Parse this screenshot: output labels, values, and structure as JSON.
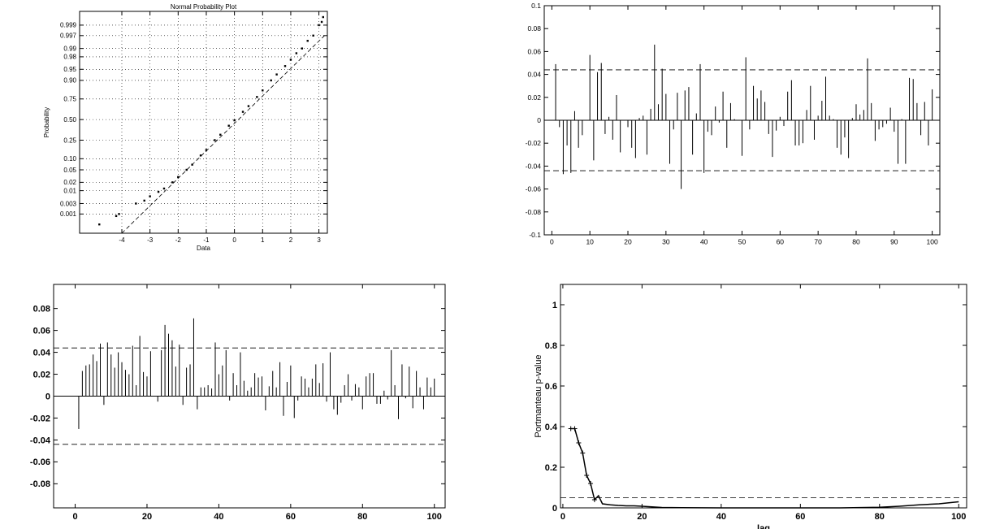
{
  "chart_data": [
    {
      "type": "scatter",
      "title": "Normal Probability Plot",
      "x_label": "Data",
      "y_label": "Probability",
      "yscale": "normal-probability",
      "grid": true,
      "color": "#000000",
      "xlim": [
        -5.5,
        3.3
      ],
      "xticks": [
        -4,
        -3,
        -2,
        -1,
        0,
        1,
        2,
        3
      ],
      "ylim": [
        0.0001,
        0.9998
      ],
      "yticks": [
        0.001,
        0.003,
        0.01,
        0.02,
        0.05,
        {
          "value": 0.1,
          "label": "0.10"
        },
        0.25,
        {
          "value": 0.5,
          "label": "0.50"
        },
        0.75,
        {
          "value": 0.9,
          "label": "0.90"
        },
        0.95,
        0.98,
        0.99,
        0.997,
        0.999
      ],
      "x": [
        -4.8,
        -4.2,
        -4.1,
        -3.5,
        -3.2,
        -3,
        -2.7,
        -2.5,
        -2.2,
        -2,
        -1.7,
        -1.5,
        -1.2,
        -1,
        -0.7,
        -0.5,
        -0.2,
        0,
        0.3,
        0.5,
        0.8,
        1,
        1.3,
        1.5,
        1.8,
        2,
        2.2,
        2.4,
        2.6,
        2.8,
        3,
        3.1,
        3.15
      ],
      "values": [
        0.0003,
        0.0008,
        0.001,
        0.003,
        0.004,
        0.006,
        0.009,
        0.012,
        0.02,
        0.03,
        0.05,
        0.07,
        0.12,
        0.16,
        0.25,
        0.31,
        0.42,
        0.49,
        0.6,
        0.67,
        0.77,
        0.83,
        0.9,
        0.93,
        0.96,
        0.975,
        0.985,
        0.99,
        0.995,
        0.997,
        0.999,
        0.9993,
        0.9996
      ],
      "reference_line": {
        "x": [
          -4,
          3.2
        ],
        "values": [
          0.0001,
          0.997
        ]
      }
    },
    {
      "type": "stem",
      "color": "#000000",
      "xlim": [
        -2,
        102
      ],
      "xticks": [
        0,
        10,
        20,
        30,
        40,
        50,
        60,
        70,
        80,
        90,
        100
      ],
      "ylim": [
        -0.1,
        0.1
      ],
      "yticks": [
        -0.1,
        -0.08,
        -0.06,
        -0.04,
        -0.02,
        0,
        0.02,
        0.04,
        0.06,
        0.08,
        0.1
      ],
      "hlines": [
        -0.044,
        0.044
      ],
      "x": [
        1,
        2,
        3,
        4,
        5,
        6,
        7,
        8,
        9,
        10,
        11,
        12,
        13,
        14,
        15,
        16,
        17,
        18,
        19,
        20,
        21,
        22,
        23,
        24,
        25,
        26,
        27,
        28,
        29,
        30,
        31,
        32,
        33,
        34,
        35,
        36,
        37,
        38,
        39,
        40,
        41,
        42,
        43,
        44,
        45,
        46,
        47,
        48,
        49,
        50,
        51,
        52,
        53,
        54,
        55,
        56,
        57,
        58,
        59,
        60,
        61,
        62,
        63,
        64,
        65,
        66,
        67,
        68,
        69,
        70,
        71,
        72,
        73,
        74,
        75,
        76,
        77,
        78,
        79,
        80,
        81,
        82,
        83,
        84,
        85,
        86,
        87,
        88,
        89,
        90,
        91,
        92,
        93,
        94,
        95,
        96,
        97,
        98,
        99,
        100
      ],
      "values": [
        0.049,
        -0.006,
        -0.047,
        -0.022,
        -0.046,
        0.008,
        -0.024,
        -0.013,
        0.0,
        0.057,
        -0.035,
        0.042,
        0.05,
        -0.012,
        0.003,
        -0.017,
        0.022,
        -0.028,
        0.0,
        -0.006,
        -0.024,
        -0.033,
        0.002,
        0.004,
        -0.03,
        0.01,
        0.066,
        0.014,
        0.045,
        0.023,
        -0.038,
        -0.008,
        0.024,
        -0.06,
        0.026,
        0.029,
        -0.03,
        0.006,
        0.049,
        -0.046,
        -0.01,
        -0.013,
        0.012,
        -0.002,
        0.025,
        -0.024,
        0.015,
        0.001,
        0.0,
        -0.031,
        0.055,
        -0.008,
        0.03,
        0.019,
        0.026,
        0.016,
        -0.012,
        -0.032,
        -0.009,
        0.003,
        -0.005,
        0.025,
        0.035,
        -0.022,
        -0.022,
        -0.02,
        0.009,
        0.03,
        -0.017,
        0.004,
        0.017,
        0.038,
        0.004,
        0.001,
        -0.024,
        -0.03,
        -0.015,
        -0.033,
        0.002,
        0.014,
        0.005,
        0.009,
        0.054,
        0.015,
        -0.018,
        -0.008,
        -0.006,
        -0.003,
        0.011,
        -0.01,
        -0.038,
        0.001,
        -0.038,
        0.037,
        0.036,
        0.015,
        -0.013,
        0.016,
        -0.022,
        0.027
      ]
    },
    {
      "type": "stem",
      "color": "#000000",
      "xlim": [
        -6,
        103
      ],
      "xticks": [
        0,
        20,
        40,
        60,
        80,
        100
      ],
      "ylim": [
        -0.102,
        0.102
      ],
      "yticks": [
        -0.08,
        -0.06,
        -0.04,
        -0.02,
        0,
        0.02,
        0.04,
        0.06,
        0.08
      ],
      "hlines": [
        -0.044,
        0.044
      ],
      "x": [
        1,
        2,
        3,
        4,
        5,
        6,
        7,
        8,
        9,
        10,
        11,
        12,
        13,
        14,
        15,
        16,
        17,
        18,
        19,
        20,
        21,
        22,
        23,
        24,
        25,
        26,
        27,
        28,
        29,
        30,
        31,
        32,
        33,
        34,
        35,
        36,
        37,
        38,
        39,
        40,
        41,
        42,
        43,
        44,
        45,
        46,
        47,
        48,
        49,
        50,
        51,
        52,
        53,
        54,
        55,
        56,
        57,
        58,
        59,
        60,
        61,
        62,
        63,
        64,
        65,
        66,
        67,
        68,
        69,
        70,
        71,
        72,
        73,
        74,
        75,
        76,
        77,
        78,
        79,
        80,
        81,
        82,
        83,
        84,
        85,
        86,
        87,
        88,
        89,
        90,
        91,
        92,
        93,
        94,
        95,
        96,
        97,
        98,
        99,
        100
      ],
      "values": [
        -0.03,
        0.023,
        0.028,
        0.029,
        0.038,
        0.032,
        0.048,
        -0.008,
        0.049,
        0.038,
        0.026,
        0.04,
        0.031,
        0.024,
        0.02,
        0.046,
        0.01,
        0.055,
        0.022,
        0.018,
        0.041,
        0.0,
        -0.005,
        0.042,
        0.065,
        0.057,
        0.051,
        0.027,
        0.047,
        -0.008,
        0.026,
        0.029,
        0.071,
        -0.012,
        0.008,
        0.008,
        0.01,
        0.007,
        0.049,
        0.02,
        0.028,
        0.042,
        -0.004,
        0.021,
        0.01,
        0.04,
        0.014,
        0.005,
        0.008,
        0.021,
        0.017,
        0.018,
        -0.013,
        0.009,
        0.023,
        0.008,
        0.031,
        -0.018,
        0.013,
        0.028,
        -0.02,
        -0.004,
        0.018,
        0.016,
        0.008,
        0.016,
        0.029,
        0.012,
        0.03,
        -0.005,
        0.04,
        -0.012,
        -0.017,
        -0.006,
        0.01,
        0.02,
        -0.004,
        0.011,
        0.008,
        -0.012,
        0.018,
        0.021,
        0.021,
        -0.007,
        -0.007,
        0.005,
        -0.003,
        0.042,
        0.01,
        -0.021,
        0.029,
        -0.002,
        0.027,
        -0.011,
        0.023,
        0.008,
        -0.012,
        0.017,
        0.008,
        0.016
      ]
    },
    {
      "type": "line",
      "x_label": "lag",
      "y_label": "Portmanteau p-value",
      "color": "#000000",
      "xlim": [
        -0.6,
        102
      ],
      "xticks": [
        0,
        20,
        40,
        60,
        80,
        100
      ],
      "ylim": [
        0,
        1.1
      ],
      "yticks": [
        0,
        0.2,
        0.4,
        0.6,
        0.8,
        1
      ],
      "hlines": [
        0.05
      ],
      "x": [
        2,
        3,
        4,
        5,
        6,
        7,
        8,
        9,
        10,
        12,
        14,
        16,
        18,
        20,
        25,
        30,
        40,
        50,
        60,
        70,
        80,
        85,
        90,
        95,
        100
      ],
      "values": [
        0.39,
        0.39,
        0.32,
        0.27,
        0.16,
        0.12,
        0.04,
        0.06,
        0.02,
        0.015,
        0.012,
        0.01,
        0.01,
        0.008,
        0.002,
        0.001,
        0,
        0,
        0,
        0,
        0.003,
        0.008,
        0.015,
        0.02,
        0.03
      ]
    }
  ]
}
